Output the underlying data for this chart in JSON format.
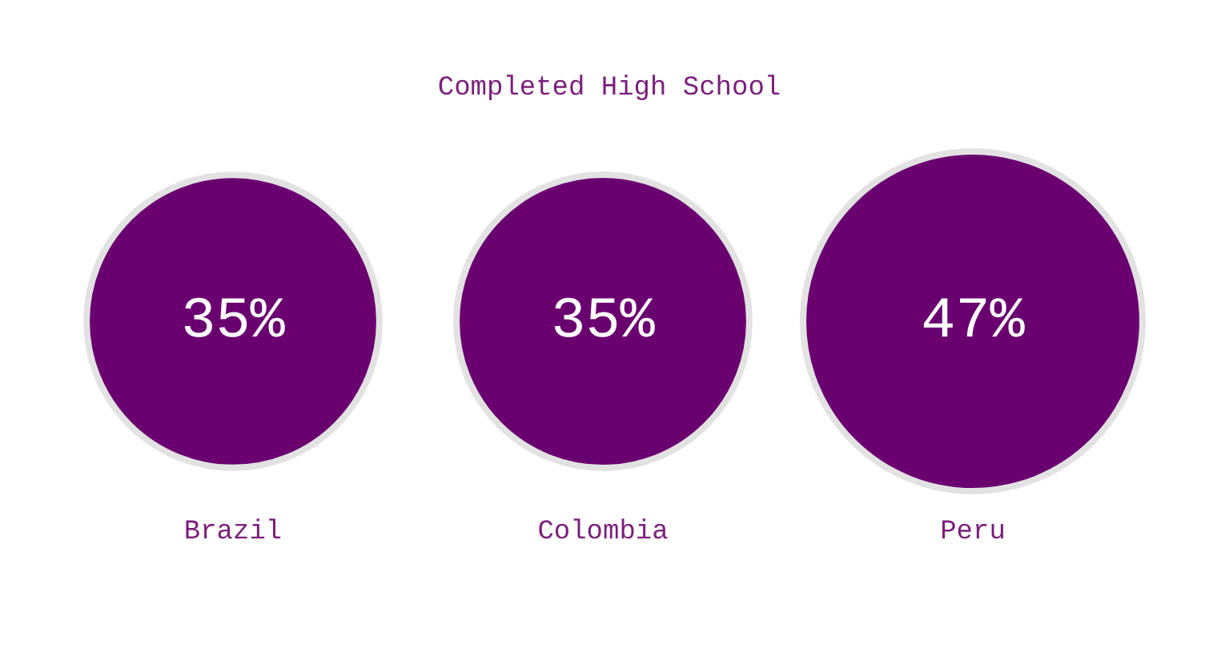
{
  "chart_data": {
    "type": "other",
    "title": "Completed High School",
    "categories": [
      "Brazil",
      "Colombia",
      "Peru"
    ],
    "values": [
      35,
      35,
      47
    ],
    "color": "#6a0070",
    "value_labels": [
      "35%",
      "35%",
      "47%"
    ]
  }
}
